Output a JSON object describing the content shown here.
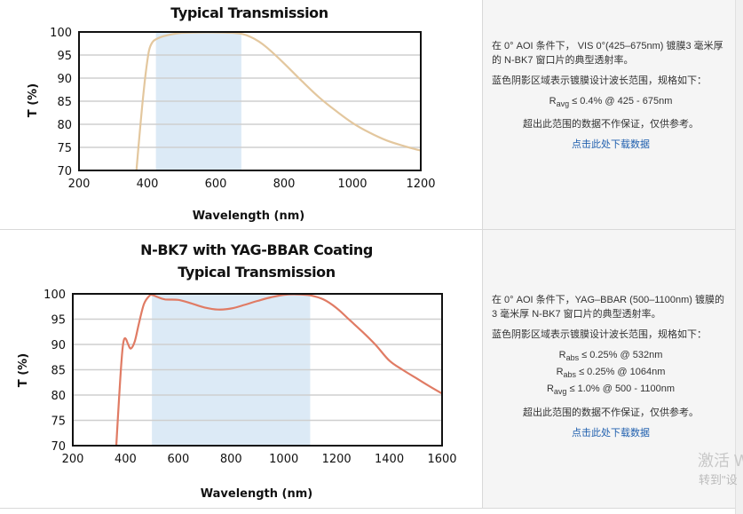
{
  "chart_data": [
    {
      "type": "line",
      "title": "Typical Transmission",
      "xlabel": "Wavelength (nm)",
      "ylabel": "T (%)",
      "xlim": [
        200,
        1200
      ],
      "ylim": [
        70,
        100
      ],
      "x_ticks": [
        "200",
        "400",
        "600",
        "800",
        "1000",
        "1200"
      ],
      "y_ticks": [
        "70",
        "75",
        "80",
        "85",
        "90",
        "95",
        "100"
      ],
      "shaded_range": [
        425,
        675
      ],
      "grid": true,
      "line_color": "#e3c79e",
      "shade_color": "#dceaf6",
      "series": [
        {
          "x": [
            368,
            375,
            385,
            395,
            405,
            415,
            425,
            440,
            460,
            480,
            500,
            550,
            600,
            650,
            675,
            700,
            725,
            750,
            800,
            850,
            900,
            950,
            1000,
            1050,
            1100,
            1150,
            1200
          ],
          "y": [
            70,
            76,
            84,
            91,
            96,
            97.8,
            98.4,
            98.9,
            99.3,
            99.6,
            99.8,
            99.9,
            99.9,
            99.8,
            99.6,
            99,
            98,
            96.6,
            93.2,
            89.5,
            86,
            83,
            80.3,
            78.2,
            76.5,
            75.3,
            74.3
          ]
        }
      ]
    },
    {
      "type": "line",
      "title": "N-BK7 with YAG-BBAR Coating",
      "subtitle": "Typical Transmission",
      "xlabel": "Wavelength (nm)",
      "ylabel": "T (%)",
      "xlim": [
        200,
        1600
      ],
      "ylim": [
        70,
        100
      ],
      "x_ticks": [
        "200",
        "400",
        "600",
        "800",
        "1000",
        "1200",
        "1400",
        "1600"
      ],
      "y_ticks": [
        "70",
        "75",
        "80",
        "85",
        "90",
        "95",
        "100"
      ],
      "shaded_range": [
        500,
        1100
      ],
      "grid": true,
      "line_color": "#e07b64",
      "shade_color": "#dceaf6",
      "series": [
        {
          "x": [
            365,
            375,
            385,
            392,
            400,
            410,
            420,
            435,
            450,
            470,
            490,
            500,
            520,
            550,
            600,
            650,
            700,
            750,
            800,
            850,
            900,
            950,
            1000,
            1050,
            1100,
            1150,
            1200,
            1250,
            1300,
            1350,
            1400,
            1450,
            1500,
            1550,
            1600
          ],
          "y": [
            70,
            79,
            87,
            90.5,
            91.2,
            90,
            89.2,
            90.6,
            94,
            98,
            99.6,
            99.8,
            99.4,
            98.9,
            98.8,
            98.1,
            97.3,
            96.9,
            97.1,
            97.8,
            98.6,
            99.3,
            99.8,
            99.9,
            99.7,
            98.9,
            97.2,
            94.8,
            92.4,
            89.8,
            86.8,
            85,
            83.4,
            81.8,
            80.3
          ]
        }
      ]
    }
  ],
  "desc1": {
    "line1": "在 0° AOI 条件下， VIS 0°(425–675nm) 镀膜3 毫米厚的 N-BK7 窗口片的典型透射率。",
    "line2": "蓝色阴影区域表示镀膜设计波长范围，规格如下：",
    "spec1_sym": "R",
    "spec1_sub": "avg",
    "spec1_text": "≤ 0.4% @ 425 - 675nm",
    "note": "超出此范围的数据不作保证，仅供参考。",
    "link": "点击此处下载数据"
  },
  "desc2": {
    "line1": "在 0° AOI 条件下，YAG–BBAR (500–1100nm) 镀膜的 3 毫米厚 N-BK7 窗口片的典型透射率。",
    "line2": "蓝色阴影区域表示镀膜设计波长范围，规格如下：",
    "spec1_sym": "R",
    "spec1_sub": "abs",
    "spec1_text": "≤ 0.25% @ 532nm",
    "spec2_sym": "R",
    "spec2_sub": "abs",
    "spec2_text": "≤ 0.25% @ 1064nm",
    "spec3_sym": "R",
    "spec3_sub": "avg",
    "spec3_text": "≤ 1.0% @ 500 - 1100nm",
    "note": "超出此范围的数据不作保证，仅供参考。",
    "link": "点击此处下载数据"
  },
  "watermark": {
    "line1": "激活 W",
    "line2": "转到\"设"
  }
}
